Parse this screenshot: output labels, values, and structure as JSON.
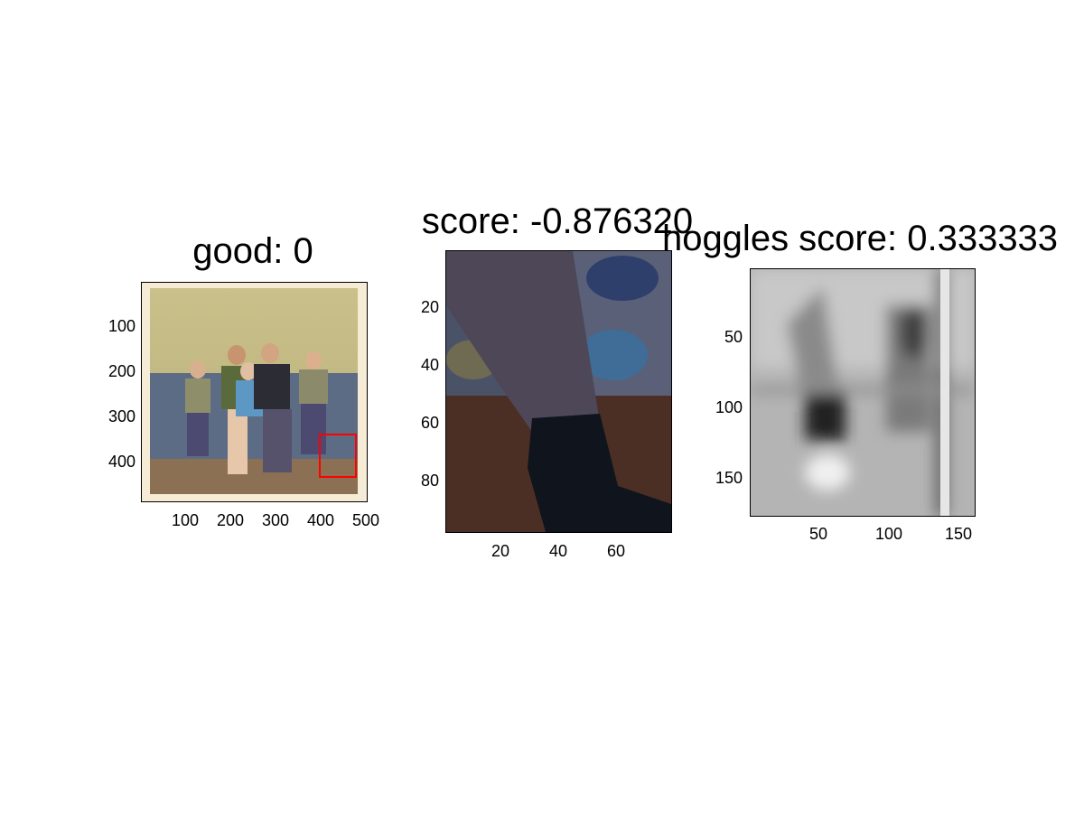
{
  "panels": [
    {
      "title": "good: 0",
      "image_desc": "family-photo",
      "yticks": [
        "100",
        "200",
        "300",
        "400"
      ],
      "xticks": [
        "100",
        "200",
        "300",
        "400",
        "500"
      ]
    },
    {
      "title": "score: -0.876320",
      "image_desc": "crop-of-leg",
      "yticks": [
        "20",
        "40",
        "60",
        "80"
      ],
      "xticks": [
        "20",
        "40",
        "60"
      ]
    },
    {
      "title": "hoggles score: 0.333333",
      "image_desc": "grayscale-inversion",
      "yticks": [
        "50",
        "100",
        "150"
      ],
      "xticks": [
        "50",
        "100",
        "150"
      ]
    }
  ],
  "colors": {
    "highlight_box": "#ff0000"
  }
}
